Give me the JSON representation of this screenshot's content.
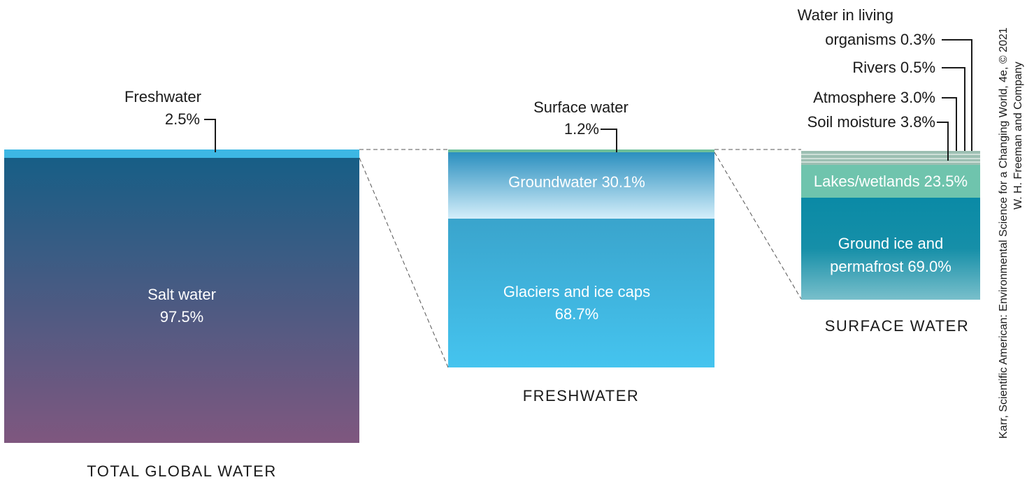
{
  "colors": {
    "saltwater_top": "#175e86",
    "saltwater_bottom": "#7f577f",
    "freshwater_strip": "#3db7e4",
    "groundwater_top": "#2b8fbf",
    "groundwater_bottom": "#d4eefa",
    "glaciers_top": "#3aa4cc",
    "glaciers_bottom": "#45c4ef",
    "surface_strip": "#6cbf9a",
    "lakes": "#6fc4ad",
    "ground_ice_top": "#0a8aa6",
    "ground_ice_bottom": "#79bfcb",
    "thin_bands": "#9cbfb2"
  },
  "panels": {
    "total": {
      "caption": "TOTAL GLOBAL WATER",
      "freshwater_label": "Freshwater",
      "freshwater_value": "2.5%",
      "saltwater_label": "Salt water",
      "saltwater_value": "97.5%"
    },
    "freshwater": {
      "caption": "FRESHWATER",
      "surface_label": "Surface water",
      "surface_value": "1.2%",
      "groundwater_label": "Groundwater 30.1%",
      "glaciers_label": "Glaciers and ice caps",
      "glaciers_value": "68.7%"
    },
    "surface": {
      "caption": "SURFACE WATER",
      "living_line1": "Water in living",
      "living_line2": "organisms 0.3%",
      "rivers": "Rivers 0.5%",
      "atmosphere": "Atmosphere 3.0%",
      "soil": "Soil moisture 3.8%",
      "lakes": "Lakes/wetlands 23.5%",
      "ground_ice_line1": "Ground ice and",
      "ground_ice_line2": "permafrost 69.0%"
    }
  },
  "credit": {
    "line1": "Karr, Scientific American: Environmental Science for a Changing World, 4e, © 2021",
    "line2": "W. H. Freeman and Company"
  }
}
